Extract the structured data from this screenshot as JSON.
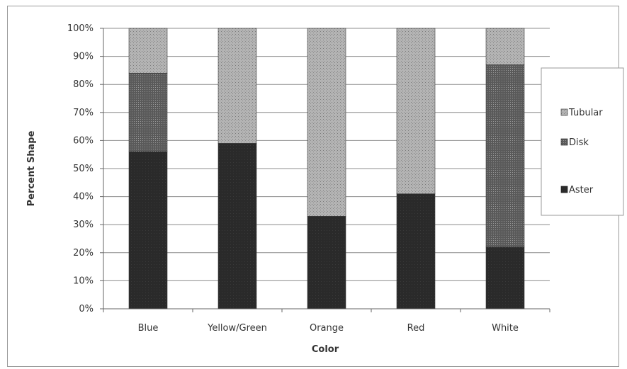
{
  "chart_data": {
    "type": "bar",
    "stacked": true,
    "categories": [
      "Blue",
      "Yellow/Green",
      "Orange",
      "Red",
      "White"
    ],
    "series": [
      {
        "name": "Aster",
        "values": [
          56,
          59,
          33,
          41,
          22
        ],
        "color": "#2b2b2b"
      },
      {
        "name": "Disk",
        "values": [
          28,
          0,
          0,
          0,
          65
        ],
        "color": "#555555"
      },
      {
        "name": "Tubular",
        "values": [
          16,
          41,
          67,
          59,
          13
        ],
        "color": "#a8a8a8"
      }
    ],
    "xlabel": "Color",
    "ylabel": "Percent Shape",
    "ylim": [
      0,
      100
    ],
    "yticks": [
      "0%",
      "10%",
      "20%",
      "30%",
      "40%",
      "50%",
      "60%",
      "70%",
      "80%",
      "90%",
      "100%"
    ],
    "grid": true,
    "legend": {
      "placement": "right",
      "order": [
        "Tubular",
        "Disk",
        "Aster"
      ]
    }
  }
}
